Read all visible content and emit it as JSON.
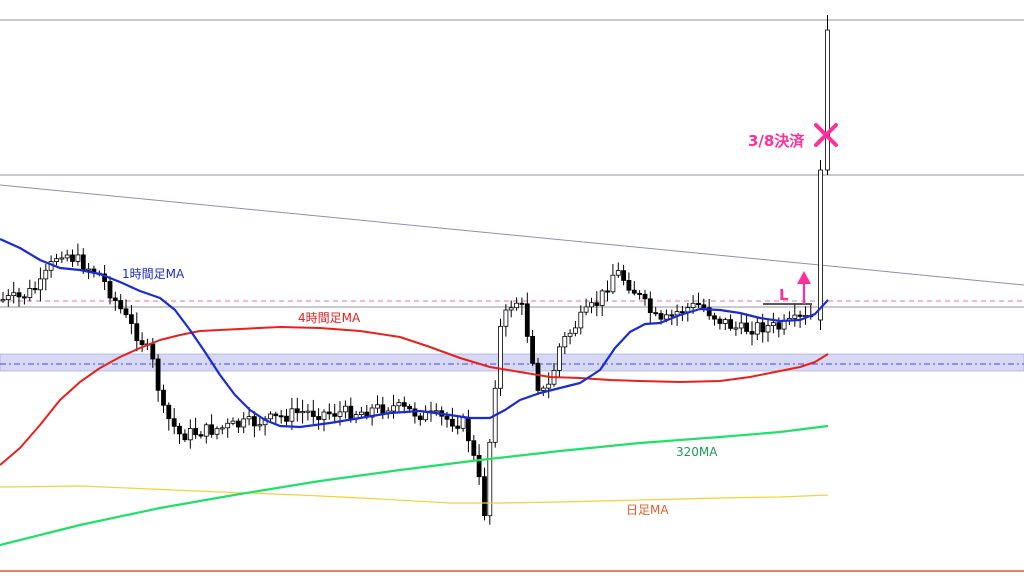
{
  "chart_data": {
    "type": "candlestick",
    "colors": {
      "ma_1h": "#1a2bd6",
      "ma_4h": "#e8201c",
      "ma_320": "#1ee06a",
      "ma_daily": "#f2d23a",
      "trendline": "#8a8fb3",
      "level_line": "#6b6f85",
      "pink_dashed": "#e86fb0",
      "support_zone": "#c9ccf0",
      "support_zone_dash": "#3d4fd8",
      "marker": "#ff2f9a",
      "candle_up": "#ffffff",
      "candle_down": "#000000",
      "bottom_line": "#d03020"
    },
    "series": [
      {
        "name": "1時間足MA",
        "key": "ma_1h"
      },
      {
        "name": "4時間足MA",
        "key": "ma_4h"
      },
      {
        "name": "320MA",
        "key": "ma_320"
      },
      {
        "name": "日足MA",
        "key": "ma_daily"
      }
    ],
    "annotations": {
      "exit": {
        "text": "3/8決済",
        "icon": "x-mark-icon"
      },
      "entry": {
        "text": "L",
        "icon": "up-arrow-icon"
      }
    }
  }
}
